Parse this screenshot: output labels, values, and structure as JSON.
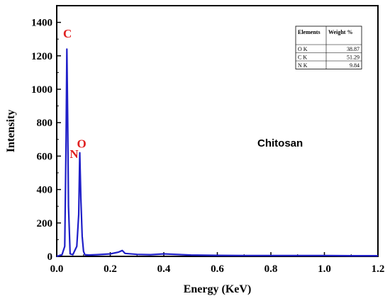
{
  "chart_data": {
    "type": "line",
    "title": "",
    "xlabel": "Energy (KeV)",
    "ylabel": "Intensity",
    "xlim": [
      0.0,
      1.2
    ],
    "ylim": [
      0,
      1500
    ],
    "x_ticks": [
      "0.0",
      "0.2",
      "0.4",
      "0.6",
      "0.8",
      "1.0",
      "1.2"
    ],
    "y_ticks": [
      "0",
      "200",
      "400",
      "600",
      "800",
      "1000",
      "1200",
      "1400"
    ],
    "grid": false,
    "line_color": "#1f1fc8",
    "label_color": "#e02020",
    "series": [
      {
        "x": [
          0.0,
          0.02,
          0.03,
          0.035,
          0.038,
          0.041,
          0.044,
          0.05,
          0.06,
          0.075,
          0.082,
          0.086,
          0.09,
          0.095,
          0.1,
          0.105,
          0.12,
          0.15,
          0.2,
          0.23,
          0.245,
          0.255,
          0.3,
          0.35,
          0.4,
          0.5,
          0.6,
          0.7,
          0.8,
          0.9,
          1.0,
          1.1,
          1.2
        ],
        "y": [
          0,
          10,
          60,
          700,
          1240,
          800,
          300,
          15,
          10,
          60,
          250,
          620,
          350,
          120,
          30,
          10,
          8,
          10,
          15,
          25,
          35,
          18,
          12,
          10,
          15,
          8,
          6,
          5,
          5,
          5,
          5,
          4,
          4
        ]
      }
    ],
    "peak_labels": [
      {
        "text": "C",
        "x": 0.04,
        "y": 1310
      },
      {
        "text": "N",
        "x": 0.065,
        "y": 590
      },
      {
        "text": "O",
        "x": 0.093,
        "y": 650
      }
    ],
    "annotation": "Chitosan",
    "table": {
      "headers": [
        "Elements",
        "Weight %"
      ],
      "rows": [
        {
          "element": "O K",
          "weight": "38.87"
        },
        {
          "element": "C K",
          "weight": "51.29"
        },
        {
          "element": "N K",
          "weight": "9.84"
        }
      ]
    }
  }
}
